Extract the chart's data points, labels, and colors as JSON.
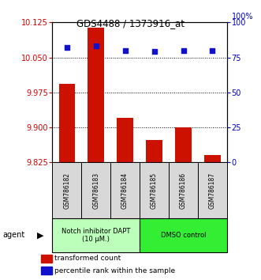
{
  "title": "GDS4488 / 1373916_at",
  "categories": [
    "GSM786182",
    "GSM786183",
    "GSM786184",
    "GSM786185",
    "GSM786186",
    "GSM786187"
  ],
  "bar_values": [
    9.993,
    10.113,
    9.92,
    9.873,
    9.9,
    9.84
  ],
  "scatter_values": [
    82,
    83,
    80,
    79,
    80,
    80
  ],
  "ylim_left": [
    9.825,
    10.125
  ],
  "ylim_right": [
    0,
    100
  ],
  "yticks_left": [
    9.825,
    9.9,
    9.975,
    10.05,
    10.125
  ],
  "yticks_right": [
    0,
    25,
    50,
    75,
    100
  ],
  "bar_color": "#cc1100",
  "scatter_color": "#1111cc",
  "bar_bottom": 9.825,
  "groups": [
    {
      "label": "Notch inhibitor DAPT\n(10 μM.)",
      "indices": [
        0,
        1,
        2
      ],
      "color": "#bbffbb"
    },
    {
      "label": "DMSO control",
      "indices": [
        3,
        4,
        5
      ],
      "color": "#33ee33"
    }
  ],
  "agent_label": "agent",
  "legend_bar_label": "transformed count",
  "legend_scatter_label": "percentile rank within the sample",
  "left_label_color": "#cc0000",
  "right_label_color": "#0000cc",
  "right_pct_label": "100%",
  "tick_fontsize": 7,
  "label_fontsize": 7
}
